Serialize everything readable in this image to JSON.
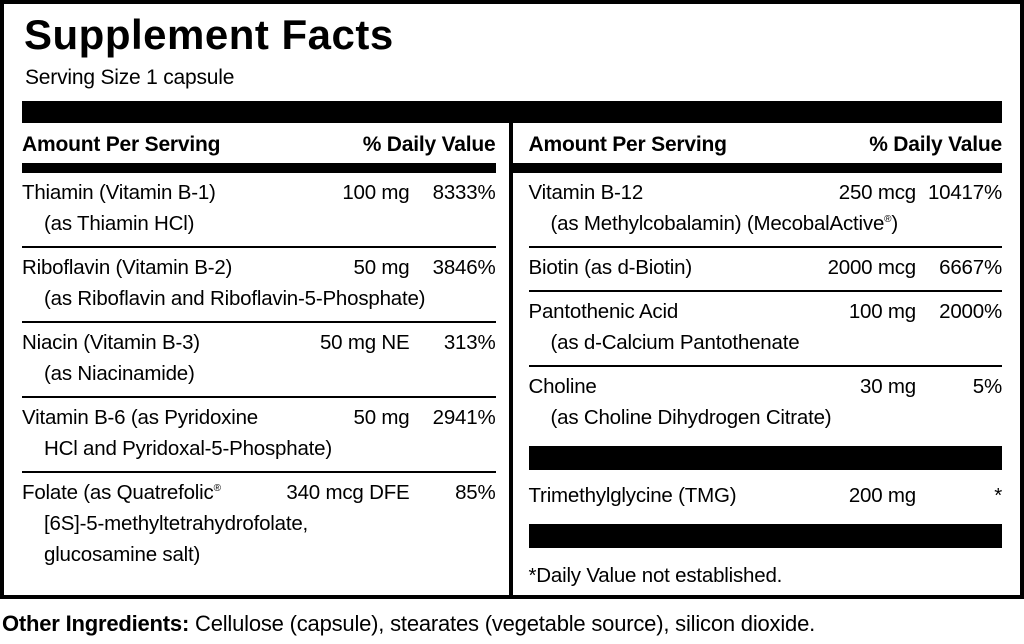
{
  "title": "Supplement Facts",
  "serving_size": "Serving Size 1 capsule",
  "columns": [
    {
      "header_amount": "Amount Per Serving",
      "header_dv": "% Daily Value",
      "rows": [
        {
          "type": "nutrient",
          "name": "Thiamin (Vitamin B-1)",
          "amount": "100 mg",
          "dv": "8333%",
          "sublines": [
            "(as Thiamin HCl)"
          ]
        },
        {
          "type": "nutrient",
          "name": "Riboflavin (Vitamin B-2)",
          "amount": "50 mg",
          "dv": "3846%",
          "sublines": [
            "(as Riboflavin and Riboflavin-5-Phosphate)"
          ]
        },
        {
          "type": "nutrient",
          "name": "Niacin (Vitamin B-3)",
          "amount": "50 mg NE",
          "dv": "313%",
          "sublines": [
            "(as Niacinamide)"
          ]
        },
        {
          "type": "nutrient",
          "name": "Vitamin B-6 (as Pyridoxine",
          "amount": "50 mg",
          "dv": "2941%",
          "sublines": [
            "HCl and Pyridoxal-5-Phosphate)"
          ]
        },
        {
          "type": "nutrient",
          "name": "Folate (as Quatrefolic®",
          "amount": "340 mcg DFE",
          "dv": "85%",
          "sublines": [
            "[6S]-5-methyltetrahydrofolate,",
            "glucosamine salt)"
          ]
        }
      ]
    },
    {
      "header_amount": "Amount Per Serving",
      "header_dv": "% Daily Value",
      "rows": [
        {
          "type": "nutrient",
          "name": "Vitamin B-12",
          "amount": "250 mcg",
          "dv": "10417%",
          "sublines": [
            "(as Methylcobalamin) (MecobalActive®)"
          ]
        },
        {
          "type": "nutrient",
          "name": "Biotin (as d-Biotin)",
          "amount": "2000 mcg",
          "dv": "6667%",
          "sublines": []
        },
        {
          "type": "nutrient",
          "name": "Pantothenic Acid",
          "amount": "100 mg",
          "dv": "2000%",
          "sublines": [
            "(as d-Calcium Pantothenate"
          ]
        },
        {
          "type": "nutrient",
          "name": "Choline",
          "amount": "30 mg",
          "dv": "5%",
          "sublines": [
            "(as Choline Dihydrogen Citrate)"
          ]
        },
        {
          "type": "bar"
        },
        {
          "type": "nutrient",
          "name": "Trimethylglycine (TMG)",
          "amount": "200 mg",
          "dv": "*",
          "sublines": []
        },
        {
          "type": "bar"
        },
        {
          "type": "note",
          "text": "*Daily Value not established."
        }
      ]
    }
  ],
  "other_ingredients": {
    "label": "Other Ingredients:",
    "text": " Cellulose (capsule), stearates (vegetable source), silicon dioxide."
  },
  "colors": {
    "ink": "#000000",
    "paper": "#ffffff"
  }
}
